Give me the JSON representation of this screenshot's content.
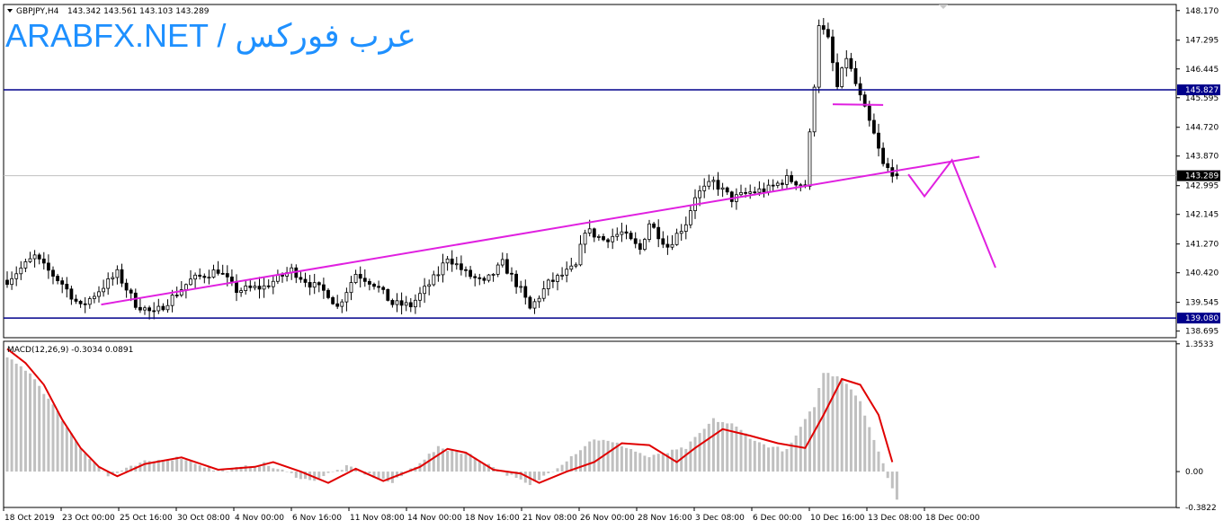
{
  "header": {
    "symbol": "GBPJPY,H4",
    "ohlc": "143.342 143.561 143.103 143.289",
    "brand": "ARABFX.NET / عرب فوركس"
  },
  "indicator": {
    "label": "MACD(12,26,9) -0.3034 0.0891"
  },
  "price_tags": {
    "upper_level": "145.827",
    "current": "143.289",
    "lower_level": "139.080"
  },
  "colors": {
    "candle": "#000000",
    "horizontal_level": "#00008b",
    "trendline": "#e020e0",
    "macd_hist": "#c0c0c0",
    "macd_signal": "#e00000",
    "current_line": "#c0c0c0",
    "brand": "#1e90ff"
  },
  "chart_data": [
    {
      "type": "candlestick",
      "title": "GBPJPY,H4",
      "y_ticks": [
        "148.170",
        "147.295",
        "146.445",
        "145.595",
        "144.720",
        "143.870",
        "142.995",
        "142.145",
        "141.270",
        "140.420",
        "139.545",
        "138.695"
      ],
      "x_ticks": [
        "18 Oct 2019",
        "23 Oct 00:00",
        "25 Oct 16:00",
        "30 Oct 08:00",
        "4 Nov 00:00",
        "6 Nov 16:00",
        "11 Nov 08:00",
        "14 Nov 00:00",
        "18 Nov 16:00",
        "21 Nov 08:00",
        "26 Nov 00:00",
        "28 Nov 16:00",
        "3 Dec 08:00",
        "6 Dec 00:00",
        "10 Dec 16:00",
        "13 Dec 08:00",
        "18 Dec 00:00"
      ],
      "ylim": [
        138.5,
        148.35
      ],
      "close_path": [
        {
          "x": 0,
          "y": 140.2
        },
        {
          "x": 6,
          "y": 140.9
        },
        {
          "x": 8,
          "y": 140.6
        },
        {
          "x": 12,
          "y": 140.1
        },
        {
          "x": 16,
          "y": 139.4
        },
        {
          "x": 20,
          "y": 139.9
        },
        {
          "x": 24,
          "y": 140.4
        },
        {
          "x": 28,
          "y": 139.5
        },
        {
          "x": 32,
          "y": 139.2
        },
        {
          "x": 36,
          "y": 139.7
        },
        {
          "x": 40,
          "y": 140.2
        },
        {
          "x": 46,
          "y": 140.5
        },
        {
          "x": 50,
          "y": 139.9
        },
        {
          "x": 56,
          "y": 140.0
        },
        {
          "x": 62,
          "y": 140.5
        },
        {
          "x": 66,
          "y": 140.1
        },
        {
          "x": 70,
          "y": 139.8
        },
        {
          "x": 72,
          "y": 139.4
        },
        {
          "x": 76,
          "y": 140.4
        },
        {
          "x": 80,
          "y": 140.1
        },
        {
          "x": 84,
          "y": 139.5
        },
        {
          "x": 88,
          "y": 139.45
        },
        {
          "x": 94,
          "y": 140.4
        },
        {
          "x": 96,
          "y": 140.9
        },
        {
          "x": 100,
          "y": 140.4
        },
        {
          "x": 104,
          "y": 140.1
        },
        {
          "x": 108,
          "y": 140.7
        },
        {
          "x": 112,
          "y": 139.9
        },
        {
          "x": 114,
          "y": 139.35
        },
        {
          "x": 118,
          "y": 140.1
        },
        {
          "x": 124,
          "y": 140.6
        },
        {
          "x": 126,
          "y": 141.7
        },
        {
          "x": 130,
          "y": 141.4
        },
        {
          "x": 134,
          "y": 141.6
        },
        {
          "x": 138,
          "y": 141.1
        },
        {
          "x": 140,
          "y": 141.9
        },
        {
          "x": 144,
          "y": 141.2
        },
        {
          "x": 148,
          "y": 141.9
        },
        {
          "x": 150,
          "y": 142.7
        },
        {
          "x": 154,
          "y": 143.1
        },
        {
          "x": 158,
          "y": 142.6
        },
        {
          "x": 162,
          "y": 142.8
        },
        {
          "x": 166,
          "y": 142.9
        },
        {
          "x": 170,
          "y": 143.2
        },
        {
          "x": 174,
          "y": 143.0
        },
        {
          "x": 176,
          "y": 146.0
        },
        {
          "x": 177,
          "y": 147.8
        },
        {
          "x": 179,
          "y": 147.3
        },
        {
          "x": 181,
          "y": 145.9
        },
        {
          "x": 183,
          "y": 146.8
        },
        {
          "x": 186,
          "y": 145.6
        },
        {
          "x": 189,
          "y": 144.5
        },
        {
          "x": 191,
          "y": 143.6
        },
        {
          "x": 194,
          "y": 143.289
        }
      ],
      "horizontal_levels": [
        145.827,
        139.08
      ],
      "current_price": 143.289,
      "drawings": [
        {
          "type": "trendline",
          "points": [
            [
              20.5,
              139.48
            ],
            [
              212,
              143.85
            ]
          ]
        },
        {
          "type": "segment",
          "points": [
            [
              180,
              145.4
            ],
            [
              191,
              145.38
            ]
          ]
        },
        {
          "type": "projection",
          "points": [
            [
              196.5,
              143.33
            ],
            [
              200,
              142.68
            ],
            [
              206,
              143.75
            ],
            [
              215.5,
              140.57
            ]
          ]
        }
      ]
    },
    {
      "type": "line",
      "title": "MACD(12,26,9) -0.3034 0.0891",
      "y_ticks": [
        "1.3533",
        "0.00",
        "-0.3822"
      ],
      "ylim": [
        -0.38,
        1.38
      ],
      "histogram_path": [
        {
          "x": 0,
          "y": 1.2
        },
        {
          "x": 5,
          "y": 1.05
        },
        {
          "x": 10,
          "y": 0.7
        },
        {
          "x": 16,
          "y": 0.25
        },
        {
          "x": 22,
          "y": -0.05
        },
        {
          "x": 30,
          "y": 0.1
        },
        {
          "x": 38,
          "y": 0.15
        },
        {
          "x": 46,
          "y": 0.0
        },
        {
          "x": 56,
          "y": 0.08
        },
        {
          "x": 66,
          "y": -0.1
        },
        {
          "x": 74,
          "y": 0.05
        },
        {
          "x": 84,
          "y": -0.12
        },
        {
          "x": 94,
          "y": 0.25
        },
        {
          "x": 100,
          "y": 0.2
        },
        {
          "x": 108,
          "y": 0.0
        },
        {
          "x": 114,
          "y": -0.15
        },
        {
          "x": 120,
          "y": 0.05
        },
        {
          "x": 128,
          "y": 0.35
        },
        {
          "x": 134,
          "y": 0.28
        },
        {
          "x": 140,
          "y": 0.15
        },
        {
          "x": 148,
          "y": 0.25
        },
        {
          "x": 154,
          "y": 0.55
        },
        {
          "x": 158,
          "y": 0.5
        },
        {
          "x": 164,
          "y": 0.3
        },
        {
          "x": 170,
          "y": 0.22
        },
        {
          "x": 176,
          "y": 0.7
        },
        {
          "x": 178,
          "y": 1.05
        },
        {
          "x": 182,
          "y": 1.0
        },
        {
          "x": 186,
          "y": 0.75
        },
        {
          "x": 190,
          "y": 0.2
        },
        {
          "x": 194,
          "y": -0.3
        }
      ],
      "signal_path": [
        {
          "x": 0,
          "y": 1.3
        },
        {
          "x": 4,
          "y": 1.15
        },
        {
          "x": 8,
          "y": 0.92
        },
        {
          "x": 12,
          "y": 0.55
        },
        {
          "x": 16,
          "y": 0.25
        },
        {
          "x": 20,
          "y": 0.05
        },
        {
          "x": 24,
          "y": -0.05
        },
        {
          "x": 30,
          "y": 0.08
        },
        {
          "x": 38,
          "y": 0.15
        },
        {
          "x": 46,
          "y": 0.02
        },
        {
          "x": 54,
          "y": 0.05
        },
        {
          "x": 58,
          "y": 0.1
        },
        {
          "x": 64,
          "y": 0.0
        },
        {
          "x": 70,
          "y": -0.12
        },
        {
          "x": 76,
          "y": 0.03
        },
        {
          "x": 82,
          "y": -0.1
        },
        {
          "x": 90,
          "y": 0.05
        },
        {
          "x": 96,
          "y": 0.24
        },
        {
          "x": 100,
          "y": 0.2
        },
        {
          "x": 106,
          "y": 0.02
        },
        {
          "x": 112,
          "y": -0.02
        },
        {
          "x": 116,
          "y": -0.12
        },
        {
          "x": 122,
          "y": 0.0
        },
        {
          "x": 128,
          "y": 0.1
        },
        {
          "x": 134,
          "y": 0.3
        },
        {
          "x": 140,
          "y": 0.28
        },
        {
          "x": 146,
          "y": 0.1
        },
        {
          "x": 150,
          "y": 0.25
        },
        {
          "x": 156,
          "y": 0.45
        },
        {
          "x": 162,
          "y": 0.38
        },
        {
          "x": 168,
          "y": 0.3
        },
        {
          "x": 174,
          "y": 0.25
        },
        {
          "x": 178,
          "y": 0.6
        },
        {
          "x": 182,
          "y": 0.98
        },
        {
          "x": 186,
          "y": 0.92
        },
        {
          "x": 190,
          "y": 0.6
        },
        {
          "x": 193,
          "y": 0.1
        }
      ]
    }
  ]
}
